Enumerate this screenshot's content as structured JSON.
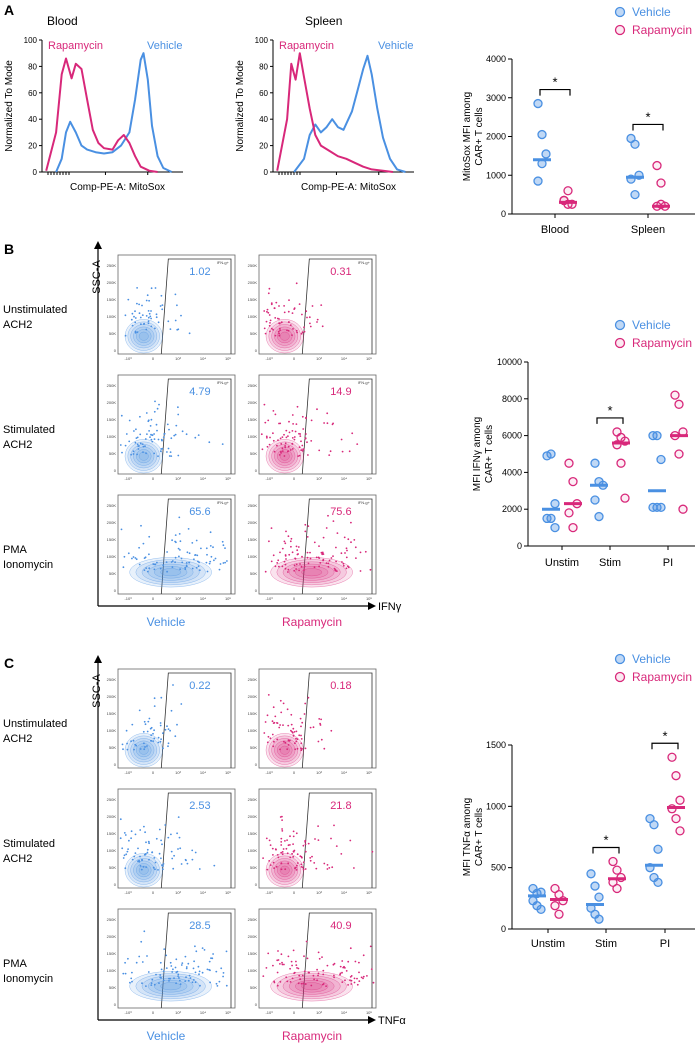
{
  "colors": {
    "vehicle": "#4a90e2",
    "rapamycin": "#d8287a",
    "axis": "#000000",
    "gate": "#333333"
  },
  "panels": {
    "A": {
      "label": "A",
      "histograms": [
        {
          "title": "Blood",
          "ylabel": "Normalized To Mode",
          "xlabel": "Comp-PE-A: MitoSox",
          "yticks": [
            "0",
            "20",
            "40",
            "60",
            "80",
            "100"
          ],
          "label_rapamycin": "Rapamycin",
          "label_vehicle": "Vehicle"
        },
        {
          "title": "Spleen",
          "ylabel": "Normalized To Mode",
          "xlabel": "Comp-PE-A: MitoSox",
          "yticks": [
            "0",
            "20",
            "40",
            "60",
            "80",
            "100"
          ],
          "label_rapamycin": "Rapamycin",
          "label_vehicle": "Vehicle"
        }
      ]
    },
    "B": {
      "label": "B",
      "y_axis_label": "SSC-A",
      "x_axis_label": "IFNγ",
      "gate_label": "IFN-g+",
      "row_labels": [
        [
          "Unstimulated",
          "ACH2"
        ],
        [
          "Stimulated",
          "ACH2"
        ],
        [
          "PMA",
          "Ionomycin"
        ]
      ],
      "col_labels": [
        "Vehicle",
        "Rapamycin"
      ],
      "percentages": [
        [
          "1.02",
          "0.31"
        ],
        [
          "4.79",
          "14.9"
        ],
        [
          "65.6",
          "75.6"
        ]
      ]
    },
    "C": {
      "label": "C",
      "y_axis_label": "SSC-A",
      "x_axis_label": "TNFα",
      "row_labels": [
        [
          "Unstimulated",
          "ACH2"
        ],
        [
          "Stimulated",
          "ACH2"
        ],
        [
          "PMA",
          "Ionomycin"
        ]
      ],
      "col_labels": [
        "Vehicle",
        "Rapamycin"
      ],
      "percentages": [
        [
          "0.22",
          "0.18"
        ],
        [
          "2.53",
          "21.8"
        ],
        [
          "28.5",
          "40.9"
        ]
      ]
    },
    "flow_axis": {
      "yticks": [
        "250K",
        "200K",
        "150K",
        "100K",
        "50K",
        "0"
      ],
      "xticks": [
        "-10³",
        "0",
        "10³",
        "10⁴",
        "10⁵"
      ]
    }
  },
  "chart_data": [
    {
      "id": "A",
      "type": "scatter",
      "title": "",
      "xlabel": "",
      "ylabel": "MitoSox MFI among CAR+ T cells",
      "categories": [
        "Blood",
        "Spleen"
      ],
      "ylim": [
        0,
        4000
      ],
      "yticks": [
        0,
        1000,
        2000,
        3000,
        4000
      ],
      "legend": [
        "Vehicle",
        "Rapamycin"
      ],
      "series": [
        {
          "name": "Vehicle",
          "points": [
            [
              2850,
              2050,
              1550,
              850,
              1300
            ],
            [
              1950,
              1800,
              1000,
              900,
              500
            ]
          ],
          "medians": [
            1400,
            950
          ]
        },
        {
          "name": "Rapamycin",
          "points": [
            [
              350,
              250,
              250,
              350,
              600
            ],
            [
              1250,
              800,
              200,
              200,
              250
            ]
          ],
          "medians": [
            300,
            200
          ]
        }
      ],
      "significance": [
        {
          "category": "Blood",
          "label": "*"
        },
        {
          "category": "Spleen",
          "label": "*"
        }
      ]
    },
    {
      "id": "B",
      "type": "scatter",
      "title": "",
      "xlabel": "",
      "ylabel": "MFI IFNγ among CAR+ T cells",
      "categories": [
        "Unstim",
        "Stim",
        "PI"
      ],
      "ylim": [
        0,
        10000
      ],
      "yticks": [
        0,
        2000,
        4000,
        6000,
        8000,
        10000
      ],
      "legend": [
        "Vehicle",
        "Rapamycin"
      ],
      "series": [
        {
          "name": "Vehicle",
          "points": [
            [
              4900,
              5000,
              2300,
              1500,
              1500,
              1000
            ],
            [
              4500,
              3500,
              3300,
              2500,
              1600
            ],
            [
              6000,
              6000,
              4700,
              2100,
              2100,
              2100
            ]
          ],
          "medians": [
            2000,
            3300,
            3000
          ]
        },
        {
          "name": "Rapamycin",
          "points": [
            [
              4500,
              3500,
              2300,
              1800,
              1000
            ],
            [
              6200,
              5900,
              5700,
              5500,
              4500,
              2600
            ],
            [
              8200,
              7700,
              6200,
              6000,
              5000,
              2000
            ]
          ],
          "medians": [
            2300,
            5600,
            6000
          ]
        }
      ],
      "significance": [
        {
          "category": "Stim",
          "label": "*"
        }
      ]
    },
    {
      "id": "C",
      "type": "scatter",
      "title": "",
      "xlabel": "",
      "ylabel": "MFI TNFα among CAR+ T cells",
      "categories": [
        "Unstim",
        "Stim",
        "PI"
      ],
      "ylim": [
        0,
        1500
      ],
      "yticks": [
        0,
        500,
        1000,
        1500
      ],
      "legend": [
        "Vehicle",
        "Rapamycin"
      ],
      "series": [
        {
          "name": "Vehicle",
          "points": [
            [
              330,
              290,
              300,
              230,
              190,
              160
            ],
            [
              450,
              350,
              260,
              170,
              120,
              80
            ],
            [
              900,
              850,
              650,
              500,
              420,
              380
            ]
          ],
          "medians": [
            270,
            200,
            520
          ]
        },
        {
          "name": "Rapamycin",
          "points": [
            [
              330,
              280,
              230,
              190,
              120
            ],
            [
              550,
              480,
              420,
              380,
              330
            ],
            [
              1400,
              1250,
              1050,
              980,
              900,
              800
            ]
          ],
          "medians": [
            240,
            410,
            990
          ]
        }
      ],
      "significance": [
        {
          "category": "Stim",
          "label": "*"
        },
        {
          "category": "PI",
          "label": "*"
        }
      ]
    }
  ]
}
